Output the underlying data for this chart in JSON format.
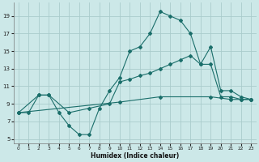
{
  "xlabel": "Humidex (Indice chaleur)",
  "bg_color": "#cce8e8",
  "grid_color": "#aacccc",
  "line_color": "#1a6e6a",
  "xlim": [
    -0.5,
    23.5
  ],
  "ylim": [
    4.5,
    20.5
  ],
  "xticks": [
    0,
    1,
    2,
    3,
    4,
    5,
    6,
    7,
    8,
    9,
    10,
    11,
    12,
    13,
    14,
    15,
    16,
    17,
    18,
    19,
    20,
    21,
    22,
    23
  ],
  "yticks": [
    5,
    7,
    9,
    11,
    13,
    15,
    17,
    19
  ],
  "line1_x": [
    0,
    1,
    2,
    3,
    4,
    5,
    6,
    7,
    8,
    9,
    10,
    11,
    12,
    13,
    14,
    15,
    16,
    17,
    18,
    19,
    20,
    21,
    22,
    23
  ],
  "line1_y": [
    8.0,
    8.0,
    10.0,
    10.0,
    8.0,
    6.5,
    5.5,
    5.5,
    8.5,
    10.5,
    12.0,
    15.0,
    15.5,
    17.0,
    19.5,
    19.0,
    18.5,
    17.0,
    13.5,
    15.5,
    10.5,
    10.5,
    9.8,
    9.5
  ],
  "line2_x": [
    0,
    2,
    3,
    5,
    7,
    9,
    10,
    11,
    12,
    13,
    14,
    15,
    16,
    17,
    18,
    19,
    20,
    21,
    22,
    23
  ],
  "line2_y": [
    8.0,
    10.0,
    10.0,
    8.0,
    8.5,
    9.0,
    11.5,
    11.8,
    12.2,
    12.5,
    13.0,
    13.5,
    14.0,
    14.5,
    13.5,
    13.5,
    9.8,
    9.8,
    9.5,
    9.5
  ],
  "line3_x": [
    0,
    10,
    14,
    19,
    21,
    22,
    23
  ],
  "line3_y": [
    8.0,
    9.2,
    9.8,
    9.8,
    9.5,
    9.5,
    9.5
  ]
}
